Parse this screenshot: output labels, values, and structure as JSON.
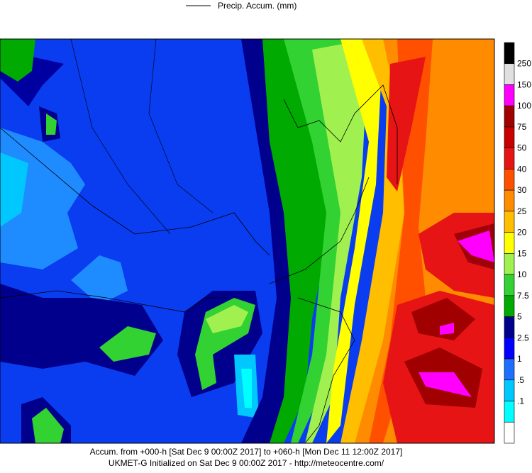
{
  "legend": {
    "label": "Precip. Accum. (mm)"
  },
  "colorbar": {
    "colors": [
      "#000000",
      "#e0e0e0",
      "#ff00ff",
      "#a00000",
      "#c80000",
      "#e61414",
      "#ff5000",
      "#ff8c00",
      "#ffbe00",
      "#ffff00",
      "#a0f050",
      "#32d232",
      "#00aa00",
      "#00008c",
      "#0000ff",
      "#1e6eff",
      "#00c8ff",
      "#00ffff",
      "#ffffff"
    ],
    "labels": [
      "250",
      "150",
      "100",
      "75",
      "50",
      "40",
      "30",
      "25",
      "20",
      "15",
      "10",
      "7.5",
      "5",
      "2.5",
      "1",
      ".5",
      ".1"
    ]
  },
  "footer": {
    "line1": "Accum. from +000-h [Sat Dec 9 00:00Z 2017] to +060-h [Mon Dec 11 12:00Z 2017]",
    "line2": "UKMET-G Initialized on Sat Dec 9 00:00Z 2017 - http://meteocentre.com/"
  }
}
